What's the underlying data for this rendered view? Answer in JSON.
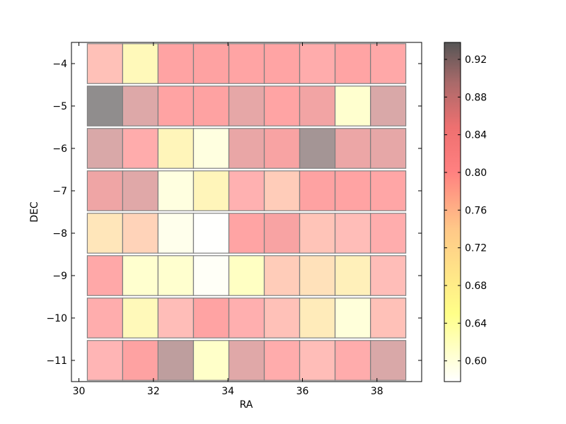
{
  "chart_data": {
    "type": "heatmap",
    "xlabel": "RA",
    "ylabel": "DEC",
    "xlim": [
      29.8,
      39.2
    ],
    "ylim": [
      -11.5,
      -3.5
    ],
    "xticks": [
      30,
      32,
      34,
      36,
      38
    ],
    "yticks": [
      -4,
      -5,
      -6,
      -7,
      -8,
      -9,
      -10,
      -11
    ],
    "x": [
      30.7,
      31.65,
      32.6,
      33.55,
      34.5,
      35.45,
      36.4,
      37.35,
      38.3
    ],
    "y": [
      -4,
      -5,
      -6,
      -7,
      -8,
      -9,
      -10,
      -11
    ],
    "values": [
      [
        0.745,
        0.65,
        0.815,
        0.82,
        0.81,
        0.81,
        0.79,
        0.81,
        0.8
      ],
      [
        0.935,
        0.875,
        0.815,
        0.82,
        0.86,
        0.81,
        0.84,
        0.62,
        0.88
      ],
      [
        0.88,
        0.79,
        0.66,
        0.605,
        0.855,
        0.83,
        0.92,
        0.85,
        0.86
      ],
      [
        0.845,
        0.87,
        0.605,
        0.66,
        0.775,
        0.73,
        0.82,
        0.815,
        0.805
      ],
      [
        0.69,
        0.72,
        0.595,
        0.58,
        0.81,
        0.83,
        0.74,
        0.75,
        0.785
      ],
      [
        0.8,
        0.62,
        0.62,
        0.585,
        0.63,
        0.73,
        0.7,
        0.67,
        0.75
      ],
      [
        0.785,
        0.65,
        0.75,
        0.815,
        0.78,
        0.745,
        0.68,
        0.61,
        0.745
      ],
      [
        0.765,
        0.82,
        0.9,
        0.625,
        0.87,
        0.79,
        0.75,
        0.79,
        0.88
      ]
    ],
    "colorbar": {
      "min": 0.578,
      "max": 0.938,
      "ticks": [
        "0.60",
        "0.64",
        "0.68",
        "0.72",
        "0.76",
        "0.80",
        "0.84",
        "0.88",
        "0.92"
      ],
      "colormap": [
        "#ffffff",
        "#ffff66",
        "#ffc066",
        "#ff6060",
        "#ff3030",
        "#b04040",
        "#000000"
      ]
    }
  }
}
